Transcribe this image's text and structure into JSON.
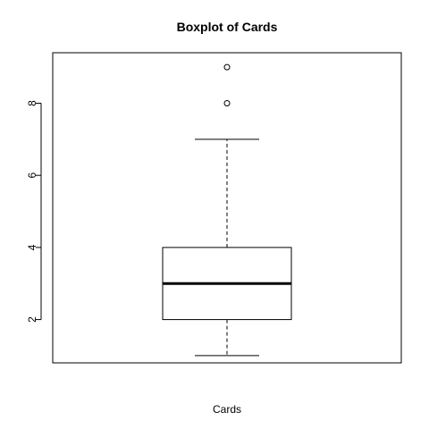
{
  "chart_data": {
    "type": "boxplot",
    "title": "Boxplot of Cards",
    "xlabel": "Cards",
    "ylabel": "",
    "series": [
      {
        "min": 1,
        "q1": 2,
        "median": 3,
        "q3": 4,
        "max": 7,
        "outliers": [
          8,
          9
        ]
      }
    ],
    "ylim": [
      0.8,
      9.4
    ],
    "yticks": [
      2,
      4,
      6,
      8
    ],
    "grid": false,
    "legend": "none"
  }
}
